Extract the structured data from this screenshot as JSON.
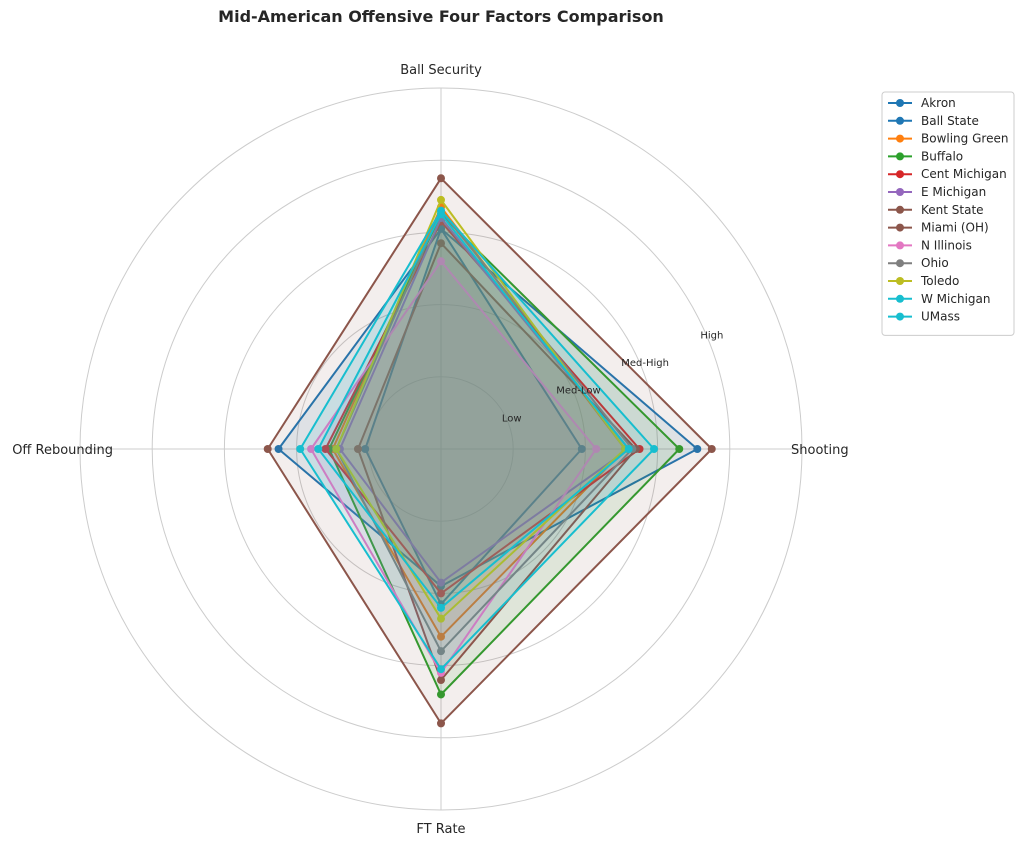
{
  "chart_data": {
    "type": "radar",
    "title": "Mid-American Offensive Four Factors Comparison",
    "axes": [
      "Ball Security",
      "Shooting",
      "FT Rate",
      "Off Rebounding"
    ],
    "ring_labels": [
      "Low",
      "Med-Low",
      "Med-High",
      "High"
    ],
    "rlim": [
      0,
      5
    ],
    "grid": true,
    "legend_position": "right",
    "series": [
      {
        "name": "Akron",
        "color": "#1f77b4",
        "values": [
          3.05,
          3.55,
          1.9,
          2.25
        ]
      },
      {
        "name": "Ball State",
        "color": "#1f77b4",
        "values": [
          3.05,
          1.95,
          2.15,
          1.05
        ]
      },
      {
        "name": "Bowling Green",
        "color": "#ff7f0e",
        "values": [
          3.35,
          2.55,
          2.6,
          1.5
        ]
      },
      {
        "name": "Buffalo",
        "color": "#2ca02c",
        "values": [
          3.25,
          3.3,
          3.4,
          1.55
        ]
      },
      {
        "name": "Cent Michigan",
        "color": "#d62728",
        "values": [
          3.15,
          2.75,
          2.0,
          1.6
        ]
      },
      {
        "name": "E Michigan",
        "color": "#9467bd",
        "values": [
          3.2,
          2.6,
          1.85,
          1.4
        ]
      },
      {
        "name": "Kent State",
        "color": "#8c564b",
        "values": [
          3.75,
          3.75,
          3.8,
          2.4
        ]
      },
      {
        "name": "Miami (OH)",
        "color": "#8c564b",
        "values": [
          2.85,
          2.7,
          3.2,
          1.15
        ]
      },
      {
        "name": "N Illinois",
        "color": "#e377c2",
        "values": [
          2.6,
          2.15,
          3.1,
          1.8
        ]
      },
      {
        "name": "Ohio",
        "color": "#7f7f7f",
        "values": [
          3.3,
          2.65,
          2.8,
          1.45
        ]
      },
      {
        "name": "Toledo",
        "color": "#bcbd22",
        "values": [
          3.45,
          2.55,
          2.35,
          1.45
        ]
      },
      {
        "name": "W Michigan",
        "color": "#17becf",
        "values": [
          3.3,
          2.95,
          3.05,
          1.95
        ]
      },
      {
        "name": "UMass",
        "color": "#17becf",
        "values": [
          3.25,
          2.6,
          2.2,
          1.7
        ]
      }
    ]
  }
}
